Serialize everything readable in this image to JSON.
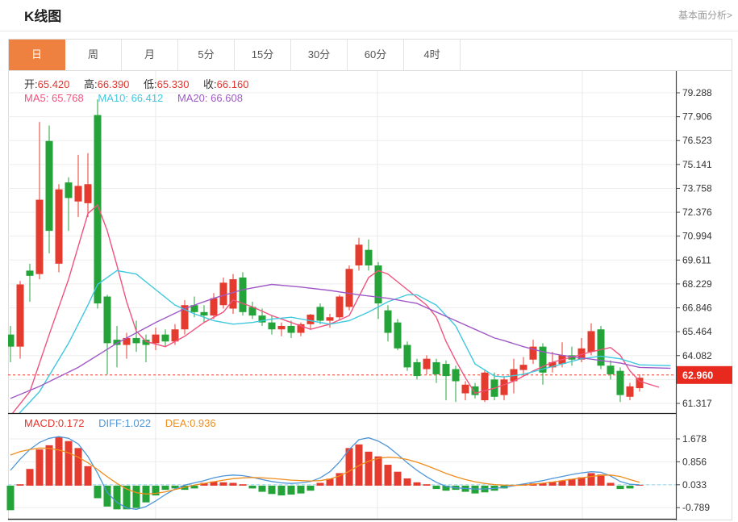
{
  "header": {
    "title": "K线图",
    "link": "基本面分析>"
  },
  "tabs": [
    {
      "label": "日",
      "active": true
    },
    {
      "label": "周",
      "active": false
    },
    {
      "label": "月",
      "active": false
    },
    {
      "label": "5分",
      "active": false
    },
    {
      "label": "15分",
      "active": false
    },
    {
      "label": "30分",
      "active": false
    },
    {
      "label": "60分",
      "active": false
    },
    {
      "label": "4时",
      "active": false
    }
  ],
  "legend": {
    "ohlc": [
      {
        "label": "开:",
        "value": "65.420"
      },
      {
        "label": "高:",
        "value": "66.390"
      },
      {
        "label": "低:",
        "value": "65.330"
      },
      {
        "label": "收:",
        "value": "66.160"
      }
    ],
    "ma": [
      {
        "label": "MA5:",
        "value": "65.768"
      },
      {
        "label": "MA10:",
        "value": "66.412"
      },
      {
        "label": "MA20:",
        "value": "66.608"
      }
    ]
  },
  "macd_legend": [
    {
      "label": "MACD:",
      "value": "0.172"
    },
    {
      "label": "DIFF:",
      "value": "1.022"
    },
    {
      "label": "DEA:",
      "value": "0.936"
    }
  ],
  "chart_data": {
    "type": "candlestick+macd",
    "title": "K线图 daily candlestick with MA5/MA10/MA20 and MACD",
    "y_ticks": [
      "79.288",
      "77.906",
      "76.523",
      "75.141",
      "73.758",
      "72.376",
      "70.994",
      "69.611",
      "68.229",
      "66.846",
      "65.464",
      "64.082",
      "62.699",
      "61.317"
    ],
    "macd_ticks": [
      "1.678",
      "0.856",
      "0.033",
      "-0.789"
    ],
    "current_price": "62.960",
    "price_range": [
      61.317,
      79.288
    ],
    "macd_range": [
      -0.789,
      1.678
    ],
    "candles": [
      [
        65.3,
        65.8,
        63.7,
        64.6
      ],
      [
        64.6,
        68.4,
        63.9,
        68.2
      ],
      [
        69.0,
        69.4,
        67.2,
        68.7
      ],
      [
        68.8,
        77.6,
        68.5,
        73.1
      ],
      [
        76.5,
        77.4,
        70.0,
        71.3
      ],
      [
        69.4,
        74.0,
        68.9,
        73.7
      ],
      [
        74.1,
        74.4,
        71.3,
        73.2
      ],
      [
        73.0,
        75.7,
        72.1,
        73.9
      ],
      [
        72.9,
        75.8,
        72.1,
        74.0
      ],
      [
        78.0,
        78.9,
        66.8,
        67.1
      ],
      [
        67.5,
        67.6,
        63.0,
        64.8
      ],
      [
        65.0,
        65.8,
        63.4,
        64.7
      ],
      [
        64.7,
        65.4,
        63.9,
        65.1
      ],
      [
        65.1,
        66.1,
        64.3,
        64.8
      ],
      [
        65.0,
        65.3,
        63.7,
        64.7
      ],
      [
        64.8,
        65.7,
        64.4,
        65.3
      ],
      [
        65.3,
        65.6,
        64.6,
        64.9
      ],
      [
        64.9,
        65.9,
        64.7,
        65.6
      ],
      [
        65.6,
        67.3,
        65.3,
        67.0
      ],
      [
        67.0,
        67.5,
        66.3,
        66.6
      ],
      [
        66.6,
        67.0,
        66.0,
        66.4
      ],
      [
        66.4,
        67.7,
        66.2,
        67.4
      ],
      [
        67.0,
        68.6,
        66.8,
        68.3
      ],
      [
        66.8,
        68.8,
        66.5,
        68.5
      ],
      [
        68.6,
        68.9,
        66.4,
        66.6
      ],
      [
        66.9,
        67.2,
        66.2,
        66.4
      ],
      [
        66.4,
        66.8,
        65.8,
        66.0
      ],
      [
        66.0,
        66.4,
        65.3,
        65.6
      ],
      [
        65.6,
        66.0,
        65.2,
        65.8
      ],
      [
        65.8,
        66.1,
        65.1,
        65.4
      ],
      [
        65.4,
        66.0,
        65.2,
        65.9
      ],
      [
        65.9,
        66.5,
        65.6,
        66.45
      ],
      [
        66.9,
        67.1,
        65.9,
        66.1
      ],
      [
        66.1,
        66.5,
        65.7,
        66.3
      ],
      [
        66.3,
        67.6,
        66.1,
        67.5
      ],
      [
        66.9,
        69.3,
        66.7,
        69.1
      ],
      [
        69.3,
        70.9,
        69.0,
        70.5
      ],
      [
        70.2,
        70.8,
        69.0,
        69.3
      ],
      [
        69.3,
        69.5,
        66.2,
        67.1
      ],
      [
        66.7,
        67.0,
        64.9,
        65.4
      ],
      [
        66.0,
        66.2,
        64.4,
        64.5
      ],
      [
        64.7,
        64.9,
        63.2,
        63.4
      ],
      [
        63.7,
        63.9,
        62.7,
        62.9
      ],
      [
        63.3,
        64.1,
        63.0,
        63.9
      ],
      [
        63.7,
        63.9,
        62.5,
        63.0
      ],
      [
        63.6,
        63.8,
        61.5,
        62.9
      ],
      [
        63.3,
        63.5,
        61.4,
        62.6
      ],
      [
        61.9,
        62.6,
        61.5,
        62.4
      ],
      [
        62.3,
        62.5,
        61.6,
        61.8
      ],
      [
        61.5,
        63.3,
        61.4,
        63.1
      ],
      [
        62.7,
        63.1,
        61.5,
        61.7
      ],
      [
        61.8,
        62.9,
        61.5,
        62.7
      ],
      [
        62.6,
        63.9,
        61.9,
        63.3
      ],
      [
        63.25,
        64.0,
        62.9,
        63.55
      ],
      [
        63.85,
        65.0,
        63.6,
        64.6
      ],
      [
        64.6,
        64.8,
        62.4,
        63.1
      ],
      [
        63.4,
        64.3,
        63.1,
        63.7
      ],
      [
        63.6,
        64.85,
        63.4,
        64.1
      ],
      [
        64.1,
        64.6,
        63.5,
        63.85
      ],
      [
        63.85,
        65.1,
        63.7,
        64.5
      ],
      [
        64.3,
        65.95,
        64.1,
        65.5
      ],
      [
        65.6,
        65.8,
        63.3,
        63.5
      ],
      [
        63.5,
        63.8,
        62.7,
        63.0
      ],
      [
        63.2,
        63.4,
        61.4,
        61.8
      ],
      [
        61.7,
        62.5,
        61.5,
        62.3
      ],
      [
        62.2,
        63.0,
        62.0,
        62.8
      ]
    ],
    "ma5": [
      [
        1,
        60.6
      ],
      [
        3,
        62.0
      ],
      [
        5,
        65.3
      ],
      [
        7,
        68.5
      ],
      [
        9,
        72.3
      ],
      [
        10,
        72.8
      ],
      [
        11,
        71.3
      ],
      [
        12,
        69.3
      ],
      [
        13,
        67.2
      ],
      [
        14,
        65.5
      ],
      [
        15,
        64.9
      ],
      [
        17,
        64.6
      ],
      [
        19,
        65.2
      ],
      [
        21,
        66.0
      ],
      [
        23,
        66.6
      ],
      [
        24,
        67.3
      ],
      [
        26,
        66.9
      ],
      [
        28,
        66.4
      ],
      [
        30,
        66.0
      ],
      [
        32,
        65.6
      ],
      [
        34,
        65.9
      ],
      [
        36,
        66.4
      ],
      [
        38,
        68.6
      ],
      [
        39,
        69.0
      ],
      [
        40,
        68.8
      ],
      [
        42,
        67.9
      ],
      [
        44,
        67.0
      ],
      [
        45,
        66.3
      ],
      [
        46,
        64.9
      ],
      [
        47,
        63.8
      ],
      [
        48,
        62.8
      ],
      [
        49,
        61.9
      ],
      [
        51,
        62.2
      ],
      [
        53,
        62.6
      ],
      [
        55,
        63.2
      ],
      [
        57,
        63.7
      ],
      [
        59,
        64.0
      ],
      [
        61,
        64.3
      ],
      [
        63,
        64.55
      ],
      [
        64,
        64.1
      ],
      [
        65,
        63.2
      ],
      [
        66,
        62.6
      ],
      [
        68,
        62.25
      ]
    ],
    "ma10": [
      [
        1,
        60.2
      ],
      [
        4,
        62.0
      ],
      [
        7,
        64.8
      ],
      [
        9,
        67.0
      ],
      [
        10,
        68.2
      ],
      [
        12,
        69.0
      ],
      [
        14,
        68.8
      ],
      [
        16,
        67.9
      ],
      [
        18,
        67.0
      ],
      [
        20,
        66.5
      ],
      [
        22,
        66.1
      ],
      [
        24,
        65.9
      ],
      [
        26,
        66.0
      ],
      [
        28,
        66.2
      ],
      [
        30,
        66.3
      ],
      [
        32,
        66.1
      ],
      [
        34,
        65.9
      ],
      [
        36,
        66.1
      ],
      [
        38,
        66.6
      ],
      [
        40,
        67.2
      ],
      [
        42,
        67.6
      ],
      [
        43,
        67.6
      ],
      [
        45,
        67.0
      ],
      [
        47,
        65.8
      ],
      [
        49,
        63.6
      ],
      [
        51,
        62.9
      ],
      [
        52,
        62.85
      ],
      [
        54,
        63.0
      ],
      [
        56,
        63.3
      ],
      [
        58,
        63.6
      ],
      [
        60,
        63.9
      ],
      [
        62,
        64.05
      ],
      [
        64,
        63.9
      ],
      [
        66,
        63.55
      ],
      [
        69.2,
        63.5
      ]
    ],
    "ma20": [
      [
        1,
        61.6
      ],
      [
        4,
        62.3
      ],
      [
        8,
        63.4
      ],
      [
        12,
        64.8
      ],
      [
        16,
        66.0
      ],
      [
        19,
        66.8
      ],
      [
        22,
        67.4
      ],
      [
        25,
        67.9
      ],
      [
        28,
        68.2
      ],
      [
        31,
        68.05
      ],
      [
        34,
        67.85
      ],
      [
        37,
        67.6
      ],
      [
        40,
        67.4
      ],
      [
        43,
        67.1
      ],
      [
        45,
        66.6
      ],
      [
        47,
        66.1
      ],
      [
        49,
        65.6
      ],
      [
        51,
        65.1
      ],
      [
        52,
        64.95
      ],
      [
        54,
        64.6
      ],
      [
        56,
        64.3
      ],
      [
        58,
        64.1
      ],
      [
        60,
        63.95
      ],
      [
        62,
        63.8
      ],
      [
        64,
        63.65
      ],
      [
        66,
        63.4
      ],
      [
        69.2,
        63.35
      ]
    ],
    "macd_hist": [
      -0.88,
      0.05,
      0.6,
      1.3,
      1.45,
      1.75,
      1.6,
      1.35,
      0.7,
      -0.45,
      -0.75,
      -0.85,
      -0.85,
      -0.8,
      -0.6,
      -0.35,
      -0.15,
      -0.1,
      -0.15,
      -0.1,
      0.1,
      0.15,
      0.12,
      0.1,
      0.05,
      -0.1,
      -0.22,
      -0.3,
      -0.35,
      -0.32,
      -0.28,
      -0.18,
      0.1,
      0.25,
      0.45,
      1.35,
      1.48,
      1.22,
      1.05,
      0.75,
      0.5,
      0.26,
      0.12,
      0.05,
      -0.12,
      -0.18,
      -0.15,
      -0.22,
      -0.28,
      -0.24,
      -0.18,
      -0.1,
      0.03,
      0.06,
      0.08,
      0.1,
      0.14,
      0.18,
      0.24,
      0.3,
      0.45,
      0.4,
      0.1,
      -0.12,
      -0.1,
      0.03
    ],
    "diff": [
      0.55,
      0.95,
      1.3,
      1.55,
      1.7,
      1.76,
      1.7,
      1.5,
      1.05,
      0.45,
      -0.25,
      -0.6,
      -0.8,
      -0.85,
      -0.75,
      -0.55,
      -0.32,
      -0.12,
      0.02,
      0.1,
      0.18,
      0.28,
      0.35,
      0.38,
      0.36,
      0.3,
      0.22,
      0.15,
      0.1,
      0.08,
      0.1,
      0.15,
      0.28,
      0.5,
      0.85,
      1.3,
      1.65,
      1.72,
      1.6,
      1.4,
      1.12,
      0.82,
      0.55,
      0.32,
      0.12,
      -0.02,
      -0.08,
      -0.1,
      -0.12,
      -0.12,
      -0.1,
      -0.06,
      0.0,
      0.06,
      0.12,
      0.18,
      0.26,
      0.33,
      0.4,
      0.46,
      0.5,
      0.48,
      0.35,
      0.15,
      0.05,
      0.03
    ],
    "dea": [
      1.1,
      1.22,
      1.3,
      1.35,
      1.34,
      1.28,
      1.18,
      1.02,
      0.82,
      0.58,
      0.32,
      0.08,
      -0.12,
      -0.25,
      -0.3,
      -0.28,
      -0.22,
      -0.14,
      -0.06,
      0.02,
      0.08,
      0.14,
      0.2,
      0.25,
      0.28,
      0.29,
      0.28,
      0.26,
      0.23,
      0.2,
      0.18,
      0.17,
      0.18,
      0.24,
      0.35,
      0.52,
      0.72,
      0.88,
      0.98,
      1.02,
      1.0,
      0.94,
      0.84,
      0.72,
      0.58,
      0.44,
      0.32,
      0.22,
      0.14,
      0.08,
      0.04,
      0.02,
      0.01,
      0.02,
      0.05,
      0.09,
      0.13,
      0.18,
      0.23,
      0.28,
      0.33,
      0.37,
      0.38,
      0.33,
      0.22,
      0.12
    ],
    "colors": {
      "up": "#e53b2e",
      "down": "#23a338",
      "ma5": "#f0537f",
      "ma10": "#3fc8de",
      "ma20": "#a05ac6",
      "diff": "#4e96d9",
      "dea": "#ef8d1d",
      "badge": "#e8291d",
      "price_line": "#ee3b2e",
      "zero_line": "#8fd4e8",
      "tab_active": "#ee8040"
    },
    "grid": true,
    "legend_position": "top-left"
  }
}
